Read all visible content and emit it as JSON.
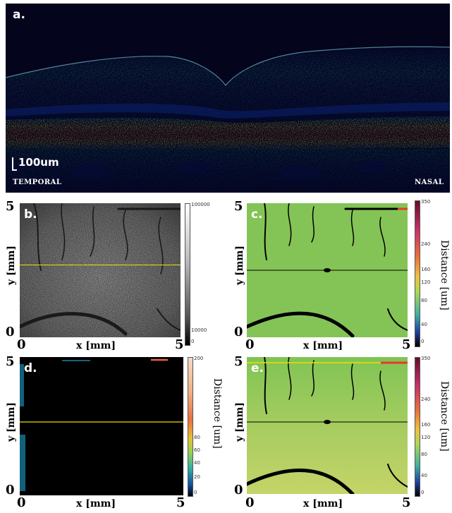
{
  "panel_a": {
    "label": "a.",
    "scale_bar": "100um",
    "left_side": "TEMPORAL",
    "right_side": "NASAL"
  },
  "panel_b": {
    "label": "b.",
    "x_ticks": [
      "0",
      "5"
    ],
    "y_ticks": [
      "5",
      "0"
    ],
    "xlabel": "x [mm]",
    "ylabel": "y [mm]",
    "colorbar_ticks": [
      "100000",
      "10000",
      "0"
    ]
  },
  "panel_c": {
    "label": "c.",
    "x_ticks": [
      "0",
      "5"
    ],
    "y_ticks": [
      "5",
      "0"
    ],
    "xlabel": "x [mm]",
    "ylabel": "y [mm]",
    "colorbar_title": "Distance [um]",
    "colorbar_ticks": [
      "350",
      "240",
      "160",
      "120",
      "80",
      "40",
      "0"
    ]
  },
  "panel_d": {
    "label": "d.",
    "x_ticks": [
      "0",
      "5"
    ],
    "y_ticks": [
      "5",
      "0"
    ],
    "xlabel": "x [mm]",
    "ylabel": "y [mm]",
    "colorbar_title": "Distance [um]",
    "colorbar_ticks": [
      "200",
      "80",
      "60",
      "40",
      "20",
      "0"
    ]
  },
  "panel_e": {
    "label": "e.",
    "x_ticks": [
      "0",
      "5"
    ],
    "y_ticks": [
      "5",
      "0"
    ],
    "xlabel": "x [mm]",
    "ylabel": "y [mm]",
    "colorbar_title": "Distance [um]",
    "colorbar_ticks": [
      "350",
      "240",
      "160",
      "120",
      "80",
      "40",
      "0"
    ]
  },
  "colors": {
    "scan_background": "#050522",
    "guide_line_yellow": "#e8e000",
    "guide_line_black": "#000000",
    "map_green": "#7cc24a"
  }
}
